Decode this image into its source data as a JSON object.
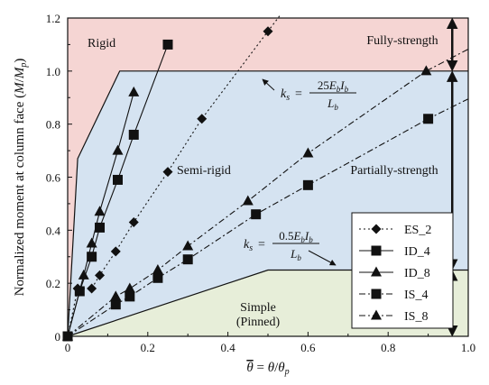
{
  "chart_data": {
    "type": "line",
    "xlabel": "θ̄ = θ/θp",
    "ylabel": "Normalized moment at column face (M/Mp)",
    "xlim": [
      0,
      1.0
    ],
    "ylim": [
      0,
      1.2
    ],
    "xticks": [
      "0",
      "0.2",
      "0.4",
      "0.6",
      "0.8",
      "1.0"
    ],
    "yticks": [
      "0",
      "0.2",
      "0.4",
      "0.6",
      "0.8",
      "1.0",
      "1.2"
    ],
    "legend_position": "bottom-right",
    "regions": [
      {
        "label": "Rigid",
        "color": "#f5d5d3"
      },
      {
        "label": "Semi-rigid",
        "color": "#d5e3f1"
      },
      {
        "label": "Simple",
        "label2": "(Pinned)",
        "color": "#e7eed9"
      }
    ],
    "region_labels": {
      "fully_strength": "Fully-strength",
      "partially_strength": "Partially-strength"
    },
    "stiffness_labels": {
      "rigid": "ks = 25EbIb / Lb",
      "simple": "ks = 0.5EbIb / Lb"
    },
    "boundaries": {
      "rigid_upper": [
        [
          0,
          0
        ],
        [
          0.025,
          0.67
        ],
        [
          0.13,
          1.0
        ],
        [
          1.0,
          1.0
        ]
      ],
      "simple_lower": [
        [
          0,
          0
        ],
        [
          0.5,
          0.25
        ],
        [
          1.0,
          0.25
        ]
      ]
    },
    "vertical_arrow_x": 0.96,
    "series": [
      {
        "name": "ES_2",
        "marker": "diamond",
        "dash": "dotted",
        "points": [
          [
            0,
            0
          ],
          [
            0.025,
            0.18
          ],
          [
            0.06,
            0.18
          ],
          [
            0.08,
            0.23
          ],
          [
            0.12,
            0.32
          ],
          [
            0.165,
            0.43
          ],
          [
            0.25,
            0.62
          ],
          [
            0.335,
            0.82
          ],
          [
            0.5,
            1.15
          ]
        ]
      },
      {
        "name": "ID_4",
        "marker": "square",
        "dash": "solid",
        "points": [
          [
            0,
            0
          ],
          [
            0.03,
            0.17
          ],
          [
            0.06,
            0.3
          ],
          [
            0.08,
            0.41
          ],
          [
            0.125,
            0.59
          ],
          [
            0.165,
            0.76
          ],
          [
            0.25,
            1.1
          ]
        ]
      },
      {
        "name": "ID_8",
        "marker": "triangle",
        "dash": "solid",
        "points": [
          [
            0,
            0
          ],
          [
            0.04,
            0.23
          ],
          [
            0.06,
            0.35
          ],
          [
            0.08,
            0.47
          ],
          [
            0.125,
            0.7
          ],
          [
            0.165,
            0.92
          ]
        ]
      },
      {
        "name": "IS_4",
        "marker": "square",
        "dash": "dashdot",
        "points": [
          [
            0,
            0
          ],
          [
            0.12,
            0.12
          ],
          [
            0.155,
            0.15
          ],
          [
            0.225,
            0.22
          ],
          [
            0.3,
            0.29
          ],
          [
            0.47,
            0.46
          ],
          [
            0.6,
            0.57
          ],
          [
            0.9,
            0.82
          ]
        ]
      },
      {
        "name": "IS_8",
        "marker": "triangle",
        "dash": "dashdot",
        "points": [
          [
            0,
            0
          ],
          [
            0.12,
            0.15
          ],
          [
            0.155,
            0.18
          ],
          [
            0.225,
            0.25
          ],
          [
            0.3,
            0.34
          ],
          [
            0.45,
            0.51
          ],
          [
            0.6,
            0.69
          ],
          [
            0.895,
            1.0
          ]
        ]
      }
    ]
  }
}
